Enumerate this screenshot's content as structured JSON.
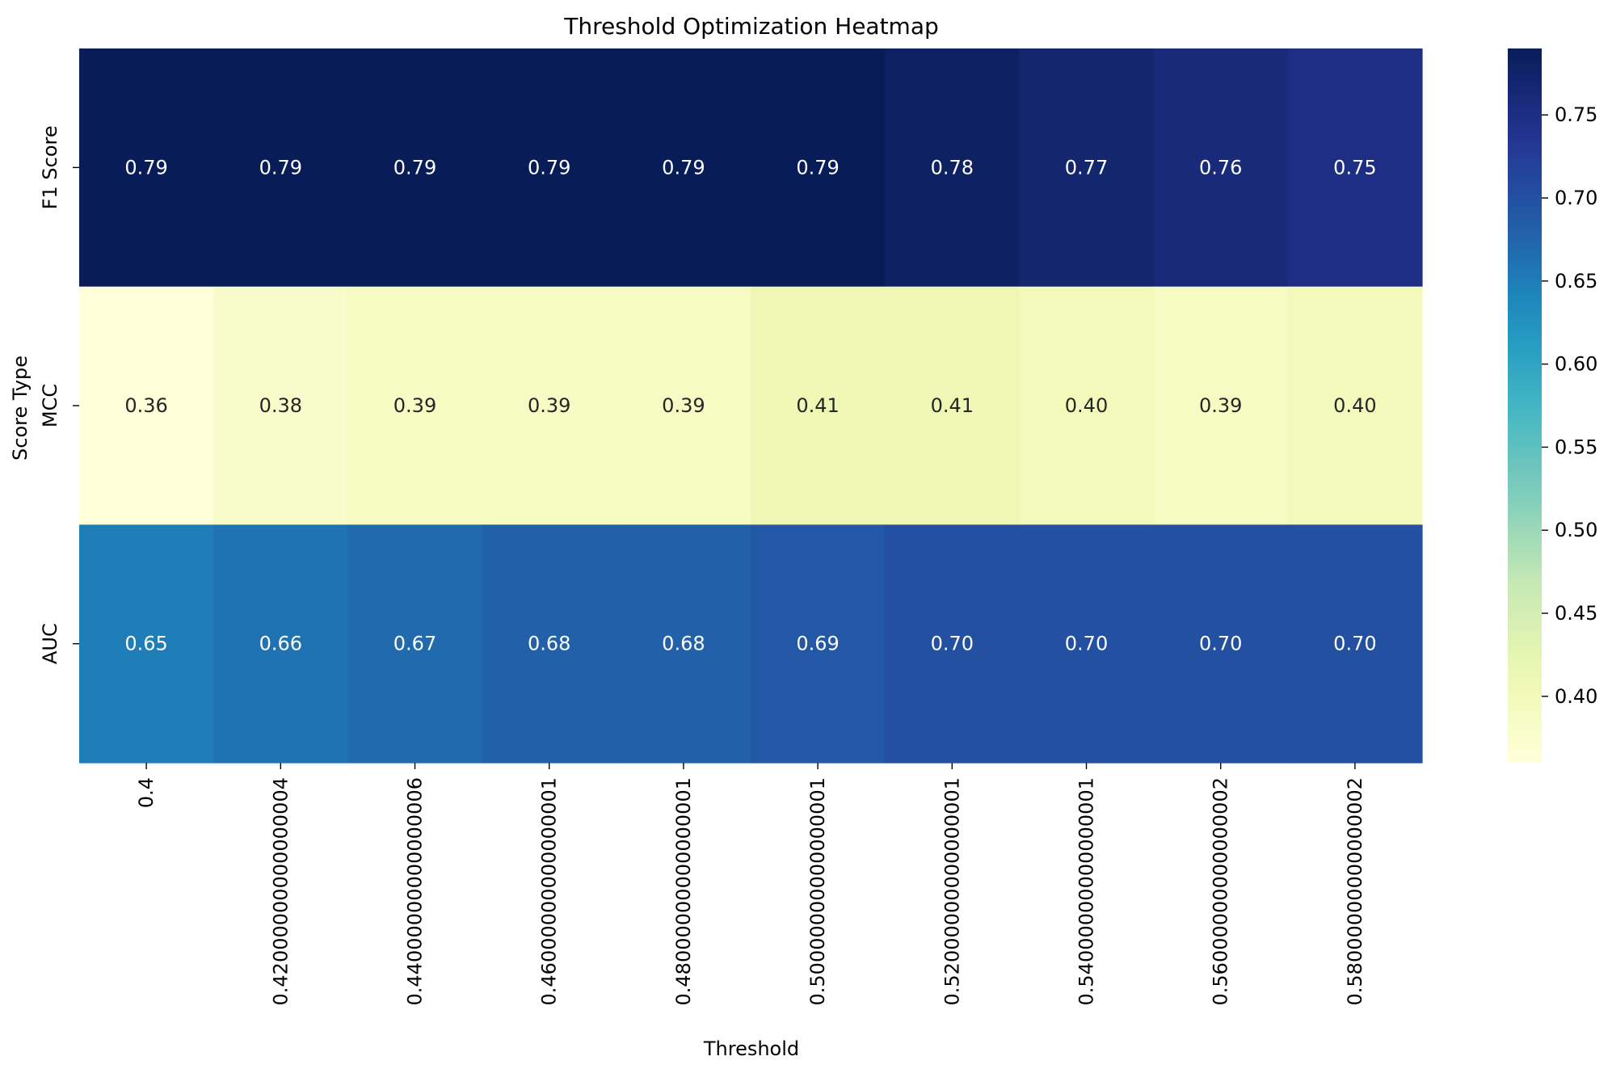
{
  "chart_data": {
    "type": "heatmap",
    "title": "Threshold Optimization Heatmap",
    "xlabel": "Threshold",
    "ylabel": "Score Type",
    "x_categories": [
      "0.4",
      "0.42000000000000004",
      "0.44000000000000006",
      "0.46000000000000001",
      "0.48000000000000001",
      "0.50000000000000001",
      "0.52000000000000001",
      "0.54000000000000001",
      "0.56000000000000002",
      "0.58000000000000002"
    ],
    "y_categories": [
      "F1 Score",
      "MCC",
      "AUC"
    ],
    "values": [
      [
        0.79,
        0.79,
        0.79,
        0.79,
        0.79,
        0.79,
        0.78,
        0.77,
        0.76,
        0.75
      ],
      [
        0.36,
        0.38,
        0.39,
        0.39,
        0.39,
        0.41,
        0.41,
        0.4,
        0.39,
        0.4
      ],
      [
        0.65,
        0.66,
        0.67,
        0.68,
        0.68,
        0.69,
        0.7,
        0.7,
        0.7,
        0.7
      ]
    ],
    "cell_labels": [
      [
        "0.79",
        "0.79",
        "0.79",
        "0.79",
        "0.79",
        "0.79",
        "0.78",
        "0.77",
        "0.76",
        "0.75"
      ],
      [
        "0.36",
        "0.38",
        "0.39",
        "0.39",
        "0.39",
        "0.41",
        "0.41",
        "0.40",
        "0.39",
        "0.40"
      ],
      [
        "0.65",
        "0.66",
        "0.67",
        "0.68",
        "0.68",
        "0.69",
        "0.70",
        "0.70",
        "0.70",
        "0.70"
      ]
    ],
    "colormap": "YlGnBu",
    "color_range": [
      0.36,
      0.79
    ],
    "colorbar_ticks": [
      0.4,
      0.45,
      0.5,
      0.55,
      0.6,
      0.65,
      0.7,
      0.75
    ],
    "colorbar_tick_labels": [
      "0.40",
      "0.45",
      "0.50",
      "0.55",
      "0.60",
      "0.65",
      "0.70",
      "0.75"
    ],
    "grid": false,
    "colorbar_position": "right"
  }
}
